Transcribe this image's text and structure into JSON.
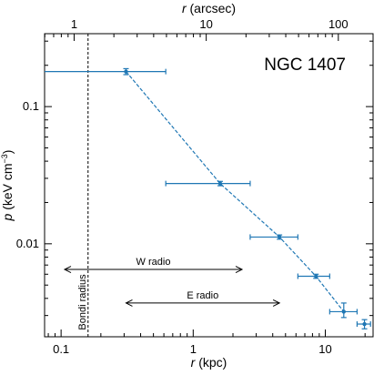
{
  "chart_data": {
    "type": "scatter",
    "object_label": "NGC 1407",
    "xlabel_italic": "r",
    "xlabel_rest": " (kpc)",
    "ylabel_italic": "p",
    "ylabel_rest": " (keV cm",
    "ylabel_exp": "−3",
    "ylabel_close": ")",
    "top_xlabel_italic": "r",
    "top_xlabel_rest": " (arcsec)",
    "xscale": "log",
    "yscale": "log",
    "xlim": [
      0.075,
      23
    ],
    "ylim": [
      0.0021,
      0.34
    ],
    "xticks": [
      {
        "value": 0.1,
        "label": "0.1"
      },
      {
        "value": 1,
        "label": "1"
      },
      {
        "value": 10,
        "label": "10"
      }
    ],
    "yticks": [
      {
        "value": 0.01,
        "label": "0.01"
      },
      {
        "value": 0.1,
        "label": "0.1"
      }
    ],
    "top_ticks": [
      {
        "value": 0.1255,
        "label": "1"
      },
      {
        "value": 1.255,
        "label": "10"
      },
      {
        "value": 12.55,
        "label": "100"
      }
    ],
    "series": [
      {
        "color": "#1f77b4",
        "points": [
          {
            "x": 0.31,
            "y": 0.18,
            "xlo": 0.04,
            "xhi": 0.62,
            "ylo": 0.171,
            "yhi": 0.189
          },
          {
            "x": 1.6,
            "y": 0.0275,
            "xlo": 0.62,
            "xhi": 2.7,
            "ylo": 0.0265,
            "yhi": 0.0285
          },
          {
            "x": 4.5,
            "y": 0.0112,
            "xlo": 2.7,
            "xhi": 6.2,
            "ylo": 0.0108,
            "yhi": 0.0116
          },
          {
            "x": 8.5,
            "y": 0.0058,
            "xlo": 6.2,
            "xhi": 10.8,
            "ylo": 0.0056,
            "yhi": 0.006
          },
          {
            "x": 13.8,
            "y": 0.0032,
            "xlo": 10.8,
            "xhi": 17.4,
            "ylo": 0.0029,
            "yhi": 0.0037
          },
          {
            "x": 19.8,
            "y": 0.0026,
            "xlo": 17.4,
            "xhi": 22.0,
            "ylo": 0.0024,
            "yhi": 0.0028
          }
        ]
      }
    ],
    "annotations": {
      "bondi_label": "Bondi radius",
      "bondi_x": 0.16,
      "w_radio_label": "W radio",
      "w_radio_range": [
        0.075,
        2.0
      ],
      "w_radio_y": 0.0065,
      "e_radio_label": "E radio",
      "e_radio_range": [
        0.31,
        4.5
      ],
      "e_radio_y": 0.0037
    }
  }
}
